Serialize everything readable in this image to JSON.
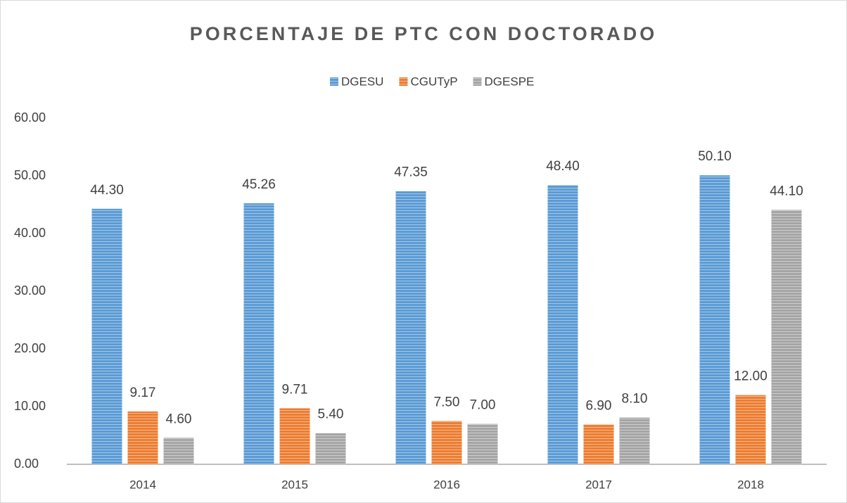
{
  "chart_data": {
    "type": "bar",
    "title": "PORCENTAJE DE PTC CON DOCTORADO",
    "categories": [
      "2014",
      "2015",
      "2016",
      "2017",
      "2018"
    ],
    "series": [
      {
        "name": "DGESU",
        "color": "#5b9bd5",
        "values": [
          44.3,
          45.26,
          47.35,
          48.4,
          50.1
        ],
        "value_labels": [
          "44.30",
          "45.26",
          "47.35",
          "48.40",
          "50.10"
        ]
      },
      {
        "name": "CGUTyP",
        "color": "#ed7d31",
        "values": [
          9.17,
          9.71,
          7.5,
          6.9,
          12
        ],
        "value_labels": [
          "9.17",
          "9.71",
          "7.50",
          "6.90",
          "12.00"
        ]
      },
      {
        "name": "DGESPE",
        "color": "#a5a5a5",
        "values": [
          4.6,
          5.4,
          7,
          8.1,
          44.1
        ],
        "value_labels": [
          "4.60",
          "5.40",
          "7.00",
          "8.10",
          "44.10"
        ]
      }
    ],
    "ylim": [
      0,
      60
    ],
    "yticks": [
      {
        "value": 0,
        "label": "0.00"
      },
      {
        "value": 10,
        "label": "10.00"
      },
      {
        "value": 20,
        "label": "20.00"
      },
      {
        "value": 30,
        "label": "30.00"
      },
      {
        "value": 40,
        "label": "40.00"
      },
      {
        "value": 50,
        "label": "50.00"
      },
      {
        "value": 60,
        "label": "60.00"
      }
    ],
    "legend": "top"
  }
}
